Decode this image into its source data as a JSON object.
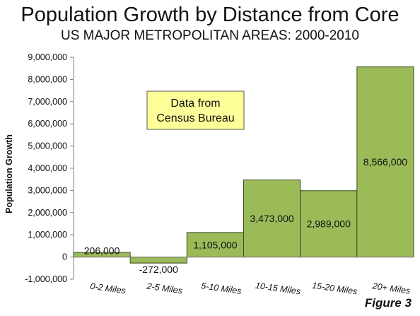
{
  "title": "Population Growth by Distance from Core",
  "subtitle": "US MAJOR METROPOLITAN AREAS: 2000-2010",
  "figure_label": "Figure 3",
  "annotation": "Data from\nCensus Bureau",
  "colors": {
    "bar_fill": "#9bbb59",
    "bar_stroke": "#3a4a1e",
    "annotation_bg": "#ffff99",
    "grid": "#c8c8c8"
  },
  "chart_data": {
    "type": "bar",
    "categories": [
      "0-2 Miles",
      "2-5 Miles",
      "5-10 Miles",
      "10-15 Miles",
      "15-20 Miles",
      "20+ Miles"
    ],
    "values": [
      206000,
      -272000,
      1105000,
      3473000,
      2989000,
      8566000
    ],
    "value_labels": [
      "206,000",
      "-272,000",
      "1,105,000",
      "3,473,000",
      "2,989,000",
      "8,566,000"
    ],
    "xlabel": "",
    "ylabel": "Population Growth",
    "ylim": [
      -1000000,
      9000000
    ],
    "yticks": [
      -1000000,
      0,
      1000000,
      2000000,
      3000000,
      4000000,
      5000000,
      6000000,
      7000000,
      8000000,
      9000000
    ],
    "ytick_labels": [
      "-1,000,000",
      "0",
      "1,000,000",
      "2,000,000",
      "3,000,000",
      "4,000,000",
      "5,000,000",
      "6,000,000",
      "7,000,000",
      "8,000,000",
      "9,000,000"
    ],
    "grid": false,
    "legend": "none"
  }
}
